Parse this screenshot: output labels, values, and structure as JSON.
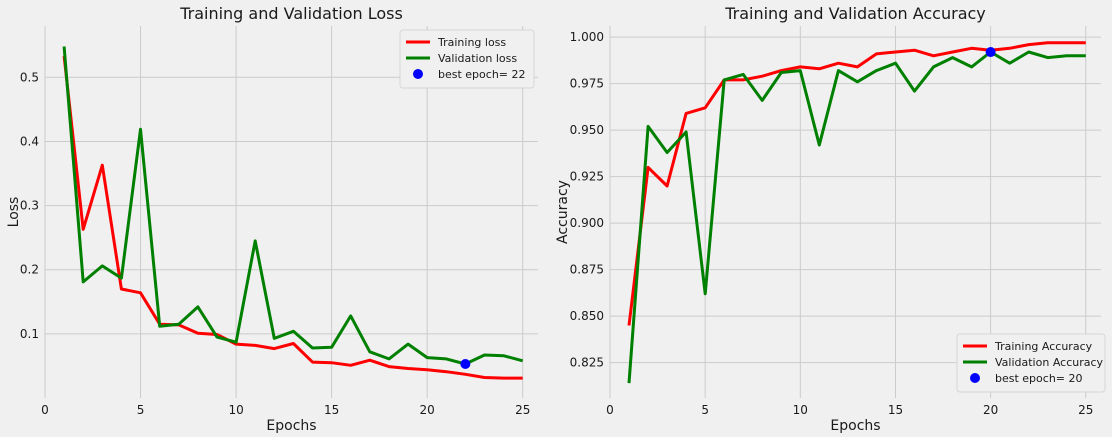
{
  "chart_data": [
    {
      "type": "line",
      "title": "Training and Validation Loss",
      "xlabel": "Epochs",
      "ylabel": "Loss",
      "xlim": [
        0,
        25.8
      ],
      "ylim": [
        0.0,
        0.58
      ],
      "xticks": [
        0,
        5,
        10,
        15,
        20,
        25
      ],
      "yticks": [
        0.1,
        0.2,
        0.3,
        0.4,
        0.5
      ],
      "x": [
        1,
        2,
        3,
        4,
        5,
        6,
        7,
        8,
        9,
        10,
        11,
        12,
        13,
        14,
        15,
        16,
        17,
        18,
        19,
        20,
        21,
        22,
        23,
        24,
        25
      ],
      "series": [
        {
          "name": "Training loss",
          "color": "#ff0000",
          "values": [
            0.533,
            0.263,
            0.363,
            0.17,
            0.164,
            0.115,
            0.114,
            0.101,
            0.099,
            0.084,
            0.082,
            0.077,
            0.085,
            0.056,
            0.055,
            0.051,
            0.059,
            0.049,
            0.046,
            0.044,
            0.041,
            0.037,
            0.032,
            0.031,
            0.031
          ]
        },
        {
          "name": "Validation loss",
          "color": "#008000",
          "values": [
            0.548,
            0.181,
            0.206,
            0.187,
            0.419,
            0.112,
            0.115,
            0.142,
            0.095,
            0.087,
            0.245,
            0.093,
            0.104,
            0.078,
            0.079,
            0.128,
            0.072,
            0.061,
            0.084,
            0.063,
            0.061,
            0.053,
            0.067,
            0.066,
            0.058
          ]
        }
      ],
      "marker": {
        "label": "best epoch= 22",
        "x": 22,
        "y": 0.053,
        "color": "#0000ff"
      },
      "legend": "top-right"
    },
    {
      "type": "line",
      "title": "Training and Validation Accuracy",
      "xlabel": "Epochs",
      "ylabel": "Accuracy",
      "xlim": [
        0,
        25.8
      ],
      "ylim": [
        0.806,
        1.006
      ],
      "xticks": [
        0,
        5,
        10,
        15,
        20,
        25
      ],
      "yticks": [
        0.825,
        0.85,
        0.875,
        0.9,
        0.925,
        0.95,
        0.975,
        1.0
      ],
      "ytick_labels": [
        "0.825",
        "0.850",
        "0.875",
        "0.900",
        "0.925",
        "0.950",
        "0.975",
        "1.000"
      ],
      "x": [
        1,
        2,
        3,
        4,
        5,
        6,
        7,
        8,
        9,
        10,
        11,
        12,
        13,
        14,
        15,
        16,
        17,
        18,
        19,
        20,
        21,
        22,
        23,
        24,
        25
      ],
      "series": [
        {
          "name": "Training Accuracy",
          "color": "#ff0000",
          "values": [
            0.845,
            0.93,
            0.92,
            0.959,
            0.962,
            0.977,
            0.977,
            0.979,
            0.982,
            0.984,
            0.983,
            0.986,
            0.984,
            0.991,
            0.992,
            0.993,
            0.99,
            0.992,
            0.994,
            0.993,
            0.994,
            0.996,
            0.997,
            0.997,
            0.997
          ]
        },
        {
          "name": "Validation Accuracy",
          "color": "#008000",
          "values": [
            0.814,
            0.952,
            0.938,
            0.949,
            0.862,
            0.977,
            0.98,
            0.966,
            0.981,
            0.982,
            0.942,
            0.982,
            0.976,
            0.982,
            0.986,
            0.971,
            0.984,
            0.989,
            0.984,
            0.992,
            0.986,
            0.992,
            0.989,
            0.99,
            0.99
          ]
        }
      ],
      "marker": {
        "label": "best epoch= 20",
        "x": 20,
        "y": 0.992,
        "color": "#0000ff"
      },
      "legend": "bottom-right"
    }
  ]
}
